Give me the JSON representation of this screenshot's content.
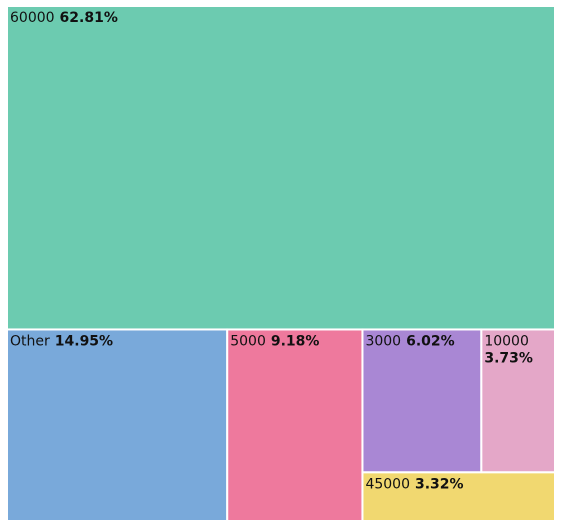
{
  "chart_data": {
    "type": "treemap",
    "items": [
      {
        "name": "60000",
        "percent": 62.81,
        "percent_label": "62.81%",
        "color": "#6ccbb0"
      },
      {
        "name": "Other",
        "percent": 14.95,
        "percent_label": "14.95%",
        "color": "#79a9da"
      },
      {
        "name": "5000",
        "percent": 9.18,
        "percent_label": "9.18%",
        "color": "#ee799d"
      },
      {
        "name": "3000",
        "percent": 6.02,
        "percent_label": "6.02%",
        "color": "#a987d4"
      },
      {
        "name": "10000",
        "percent": 3.73,
        "percent_label": "3.73%",
        "color": "#e4a7c8"
      },
      {
        "name": "45000",
        "percent": 3.32,
        "percent_label": "3.32%",
        "color": "#f1d870"
      }
    ]
  }
}
